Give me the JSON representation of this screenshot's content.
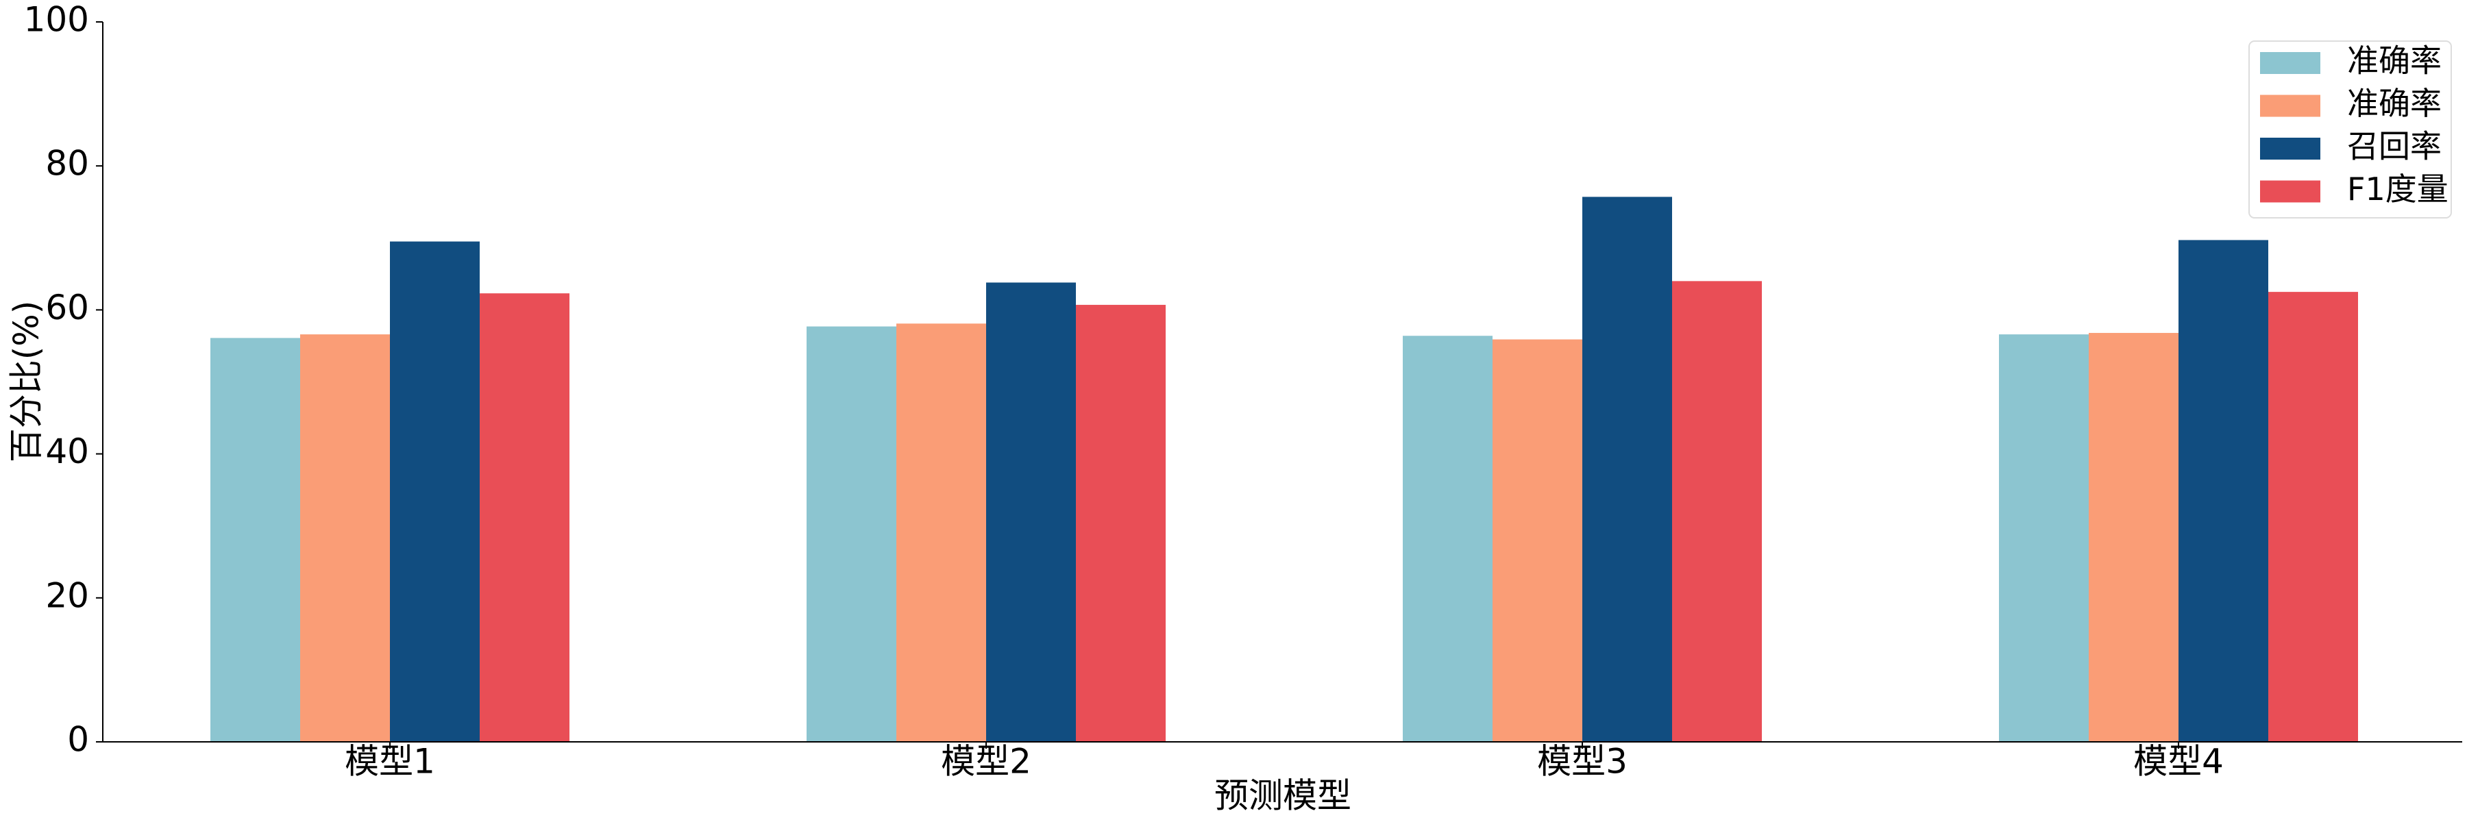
{
  "chart_data": {
    "type": "bar",
    "xlabel": "预测模型",
    "ylabel": "百分比(%)",
    "categories": [
      "模型1",
      "模型2",
      "模型3",
      "模型4"
    ],
    "series": [
      {
        "name": "准确率",
        "color": "#8cc5d0",
        "values": [
          56.1,
          57.7,
          56.4,
          56.6
        ]
      },
      {
        "name": "准确率",
        "color": "#fa9d76",
        "values": [
          56.6,
          58.1,
          55.9,
          56.8
        ]
      },
      {
        "name": "召回率",
        "color": "#114d80",
        "values": [
          69.5,
          63.8,
          75.7,
          69.7
        ]
      },
      {
        "name": "F1度量",
        "color": "#e94e56",
        "values": [
          62.3,
          60.7,
          64.0,
          62.5
        ]
      }
    ],
    "ylim": [
      0,
      100
    ],
    "yticks": [
      0,
      20,
      40,
      60,
      80,
      100
    ],
    "grid": false,
    "legend": "upper right"
  }
}
